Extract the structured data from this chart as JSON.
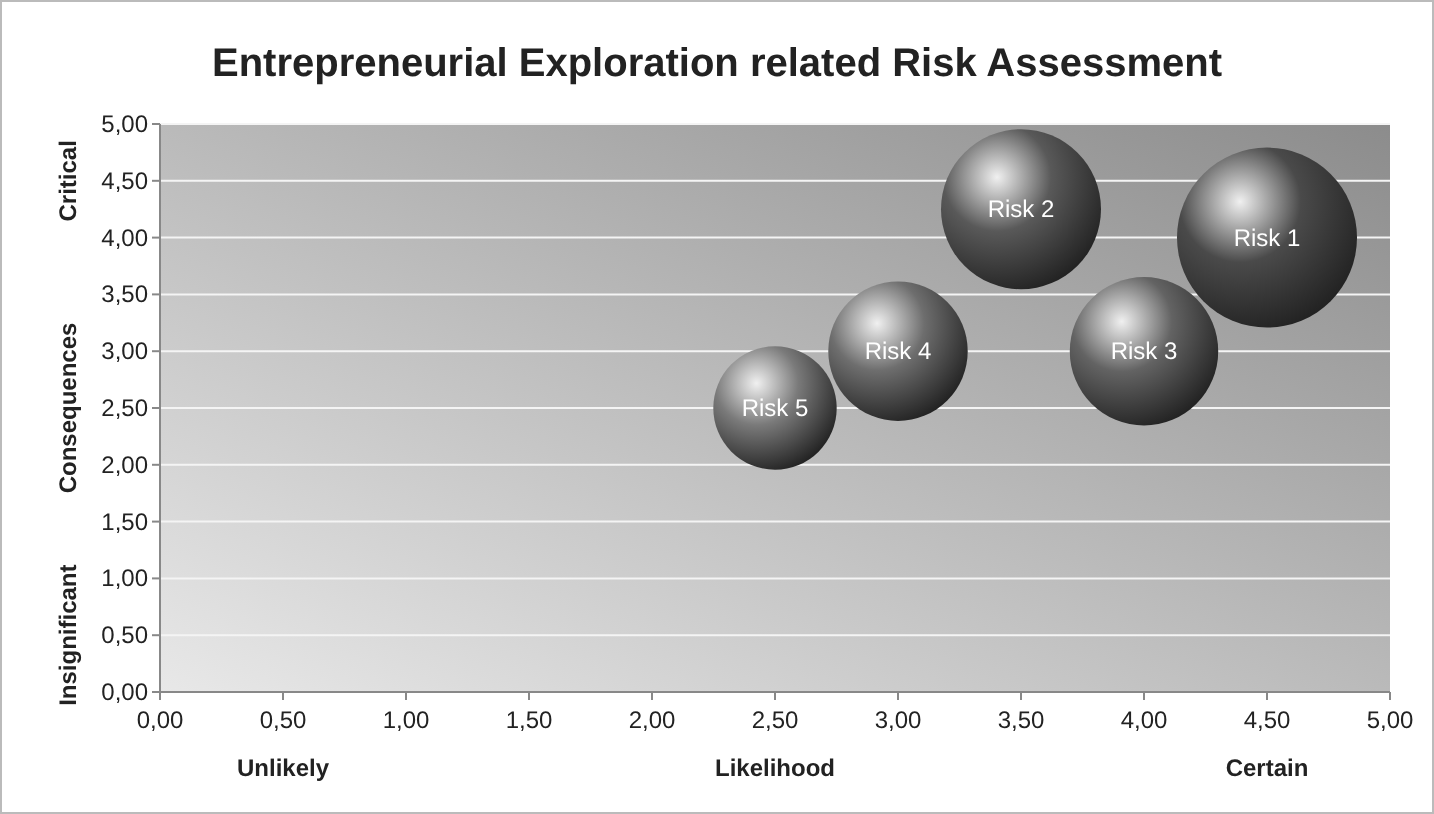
{
  "chart_data": {
    "type": "bubble",
    "title": "Entrepreneurial Exploration related Risk Assessment",
    "xlabel": "Likelihood",
    "ylabel": "Consequences",
    "xlim": [
      0,
      5
    ],
    "ylim": [
      0,
      5
    ],
    "xticks": [
      {
        "value": 0,
        "label": "0,00"
      },
      {
        "value": 0.5,
        "label": "0,50"
      },
      {
        "value": 1,
        "label": "1,00"
      },
      {
        "value": 1.5,
        "label": "1,50"
      },
      {
        "value": 2,
        "label": "2,00"
      },
      {
        "value": 2.5,
        "label": "2,50"
      },
      {
        "value": 3,
        "label": "3,00"
      },
      {
        "value": 3.5,
        "label": "3,50"
      },
      {
        "value": 4,
        "label": "4,00"
      },
      {
        "value": 4.5,
        "label": "4,50"
      },
      {
        "value": 5,
        "label": "5,00"
      }
    ],
    "yticks": [
      {
        "value": 0,
        "label": "0,00"
      },
      {
        "value": 0.5,
        "label": "0,50"
      },
      {
        "value": 1,
        "label": "1,00"
      },
      {
        "value": 1.5,
        "label": "1,50"
      },
      {
        "value": 2,
        "label": "2,00"
      },
      {
        "value": 2.5,
        "label": "2,50"
      },
      {
        "value": 3,
        "label": "3,00"
      },
      {
        "value": 3.5,
        "label": "3,50"
      },
      {
        "value": 4,
        "label": "4,00"
      },
      {
        "value": 4.5,
        "label": "4,50"
      },
      {
        "value": 5,
        "label": "5,00"
      }
    ],
    "grid": "y",
    "series": [
      {
        "name": "Risk 1",
        "color": "#4a4a4a",
        "x": [
          4.5
        ],
        "values": [
          4.0
        ],
        "sizes": [
          1
        ]
      },
      {
        "name": "Risk 2",
        "color": "#595959",
        "x": [
          3.5
        ],
        "values": [
          4.25
        ],
        "sizes": [
          0.79
        ]
      },
      {
        "name": "Risk 3",
        "color": "#636363",
        "x": [
          4.0
        ],
        "values": [
          3.0
        ],
        "sizes": [
          0.68
        ]
      },
      {
        "name": "Risk 4",
        "color": "#6e6e6e",
        "x": [
          3.0
        ],
        "values": [
          3.0
        ],
        "sizes": [
          0.6
        ]
      },
      {
        "name": "Risk 5",
        "color": "#7a7a7a",
        "x": [
          2.5
        ],
        "values": [
          2.5
        ],
        "sizes": [
          0.47
        ]
      }
    ],
    "annotations": [
      "Unlikely",
      "Certain",
      "Insignificant",
      "Critical"
    ]
  }
}
